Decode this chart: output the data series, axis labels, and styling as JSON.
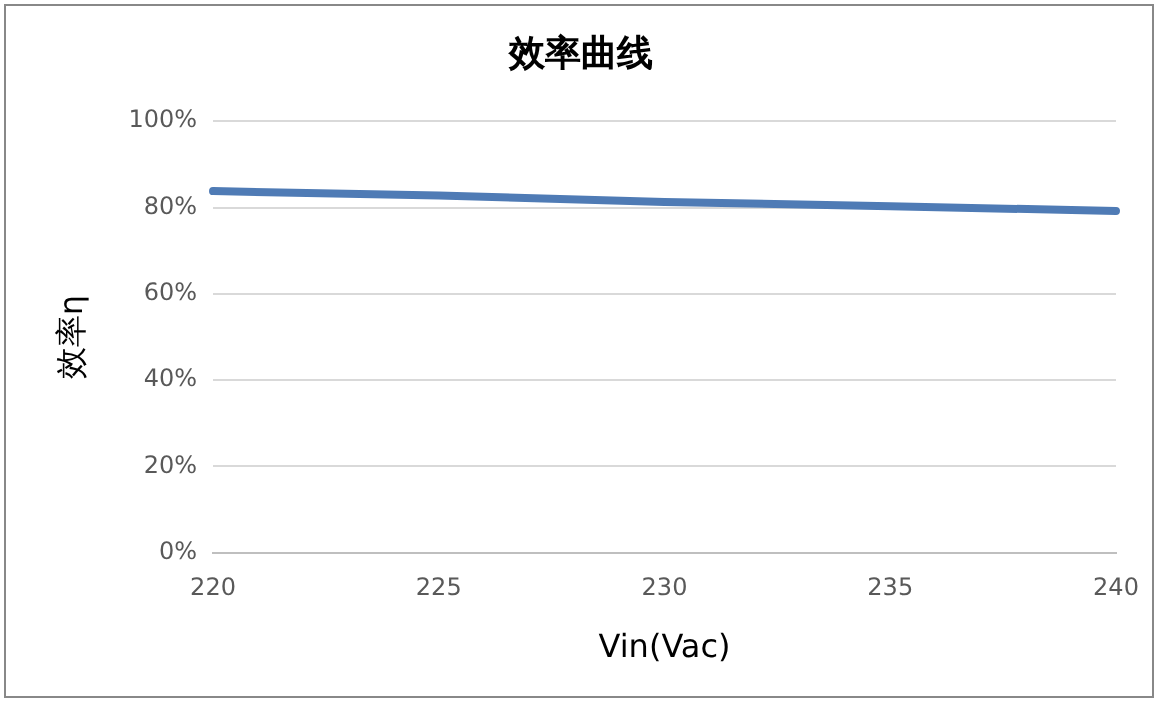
{
  "chart_data": {
    "type": "line",
    "title": "效率曲线",
    "xlabel": "Vin(Vac)",
    "ylabel": "效率η",
    "categories": [
      "220",
      "225",
      "230",
      "235",
      "240"
    ],
    "series": [
      {
        "color": "#4f7bb5",
        "values": [
          83.8,
          82.8,
          81.3,
          80.3,
          79.2
        ]
      }
    ],
    "ylim": [
      0,
      100
    ],
    "yticks": [
      {
        "value": 0,
        "label": "0%"
      },
      {
        "value": 20,
        "label": "20%"
      },
      {
        "value": 40,
        "label": "40%"
      },
      {
        "value": 60,
        "label": "60%"
      },
      {
        "value": 80,
        "label": "80%"
      },
      {
        "value": 100,
        "label": "100%"
      }
    ],
    "grid": "y",
    "legend": false,
    "marker": "none",
    "line_style": "solid"
  }
}
